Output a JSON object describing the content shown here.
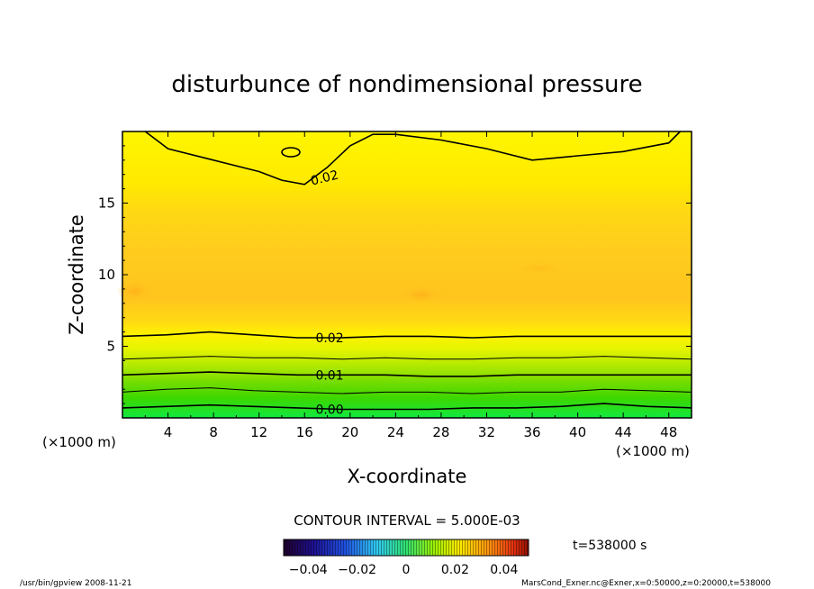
{
  "chart_data": {
    "type": "contour",
    "title": "disturbunce of nondimensional pressure",
    "xlabel": "X-coordinate",
    "ylabel": "Z-coordinate",
    "x_unit": "(×1000 m)",
    "y_unit": "(×1000 m)",
    "xlim": [
      0,
      50
    ],
    "ylim": [
      0,
      20
    ],
    "x_ticks": [
      4,
      8,
      12,
      16,
      20,
      24,
      28,
      32,
      36,
      40,
      44,
      48
    ],
    "y_ticks": [
      5,
      10,
      15
    ],
    "contour_interval_text": "CONTOUR INTERVAL = 5.000E-03",
    "contour_lines": [
      {
        "level": "0.00",
        "z": [
          0.7,
          0.8,
          0.9,
          0.8,
          0.7,
          0.6,
          0.6,
          0.6,
          0.7,
          0.7,
          0.8,
          1.0,
          0.8,
          0.7
        ]
      },
      {
        "level": "",
        "z": [
          1.8,
          2.0,
          2.1,
          1.9,
          1.8,
          1.7,
          1.8,
          1.8,
          1.7,
          1.8,
          1.8,
          2.0,
          1.9,
          1.8
        ]
      },
      {
        "level": "0.01",
        "z": [
          3.0,
          3.1,
          3.2,
          3.1,
          3.0,
          3.0,
          3.0,
          2.9,
          2.9,
          3.0,
          3.0,
          3.0,
          3.0,
          3.0
        ]
      },
      {
        "level": "",
        "z": [
          4.1,
          4.2,
          4.3,
          4.2,
          4.2,
          4.1,
          4.2,
          4.1,
          4.1,
          4.2,
          4.2,
          4.3,
          4.2,
          4.1
        ]
      },
      {
        "level": "0.02",
        "z": [
          5.7,
          5.8,
          6.0,
          5.8,
          5.6,
          5.6,
          5.7,
          5.7,
          5.6,
          5.7,
          5.7,
          5.7,
          5.7,
          5.7
        ]
      }
    ],
    "upper_contour": {
      "level": "0.02",
      "x": [
        2,
        4,
        8,
        12,
        14,
        16,
        18,
        20,
        22,
        24,
        28,
        32,
        36,
        40,
        44,
        48,
        49
      ],
      "z": [
        20,
        18.8,
        18.0,
        17.2,
        16.6,
        16.3,
        17.5,
        19.0,
        19.8,
        19.8,
        19.4,
        18.8,
        18.0,
        18.3,
        18.6,
        19.2,
        20
      ]
    },
    "colorbar": {
      "ticks": [
        "−0.04",
        "−0.02",
        "0",
        "0.02",
        "0.04"
      ],
      "range": [
        -0.05,
        0.05
      ]
    },
    "time_label": "t=538000 s"
  },
  "footer": {
    "left": "/usr/bin/gpview   2008-11-21",
    "right": "MarsCond_Exner.nc@Exner,x=0:50000,z=0:20000,t=538000"
  }
}
